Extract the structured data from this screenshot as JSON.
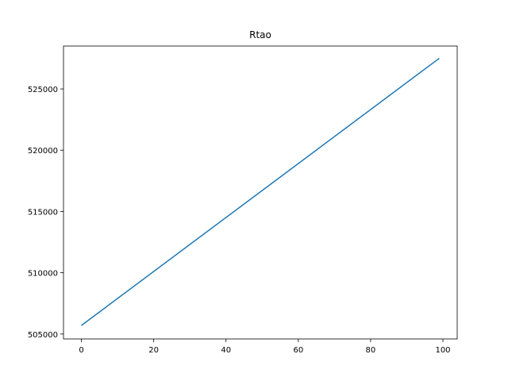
{
  "chart_data": {
    "type": "line",
    "title": "Rtao",
    "xlabel": "",
    "ylabel": "",
    "xlim": [
      -4.95,
      103.95
    ],
    "ylim": [
      504600,
      528500
    ],
    "x_ticks": [
      0,
      20,
      40,
      60,
      80,
      100
    ],
    "y_ticks": [
      505000,
      510000,
      515000,
      520000,
      525000
    ],
    "grid": false,
    "series": [
      {
        "color": "#1f77b4",
        "x": [
          0,
          99
        ],
        "y": [
          505700,
          527500
        ]
      }
    ]
  }
}
